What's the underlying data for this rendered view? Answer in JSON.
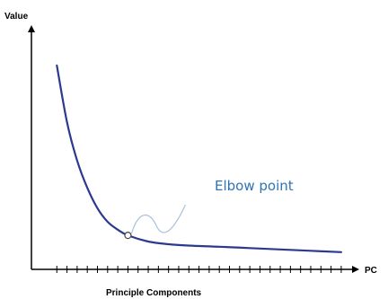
{
  "chart_data": {
    "type": "line",
    "title": "",
    "ylabel": "Value",
    "xlabel_end": "PC",
    "xlabel": "Principle Components",
    "ticks": [
      1,
      2,
      3,
      4,
      5,
      6,
      7,
      8,
      9,
      10,
      11,
      12,
      13,
      14,
      15,
      16,
      17,
      18,
      19,
      20,
      21,
      22,
      23,
      24,
      25,
      26,
      27,
      28,
      29
    ],
    "series": [
      {
        "x": [
          1,
          2,
          3,
          4,
          5,
          6,
          7,
          8,
          10,
          12,
          14,
          17,
          20,
          23,
          26,
          29
        ],
        "y": [
          88,
          63,
          46,
          34,
          25,
          19,
          15.5,
          13,
          10.3,
          9.1,
          8.5,
          8,
          7.4,
          6.8,
          6.2,
          5.6
        ],
        "color": "#2b3a8f"
      }
    ],
    "xlim": [
      -1.5,
      30.6
    ],
    "ylim": [
      -2,
      105
    ],
    "annotation": {
      "text": "Elbow point",
      "x": 8,
      "y": 13,
      "color": "#2e74b5",
      "leader_color": "#a9c1d9"
    }
  }
}
